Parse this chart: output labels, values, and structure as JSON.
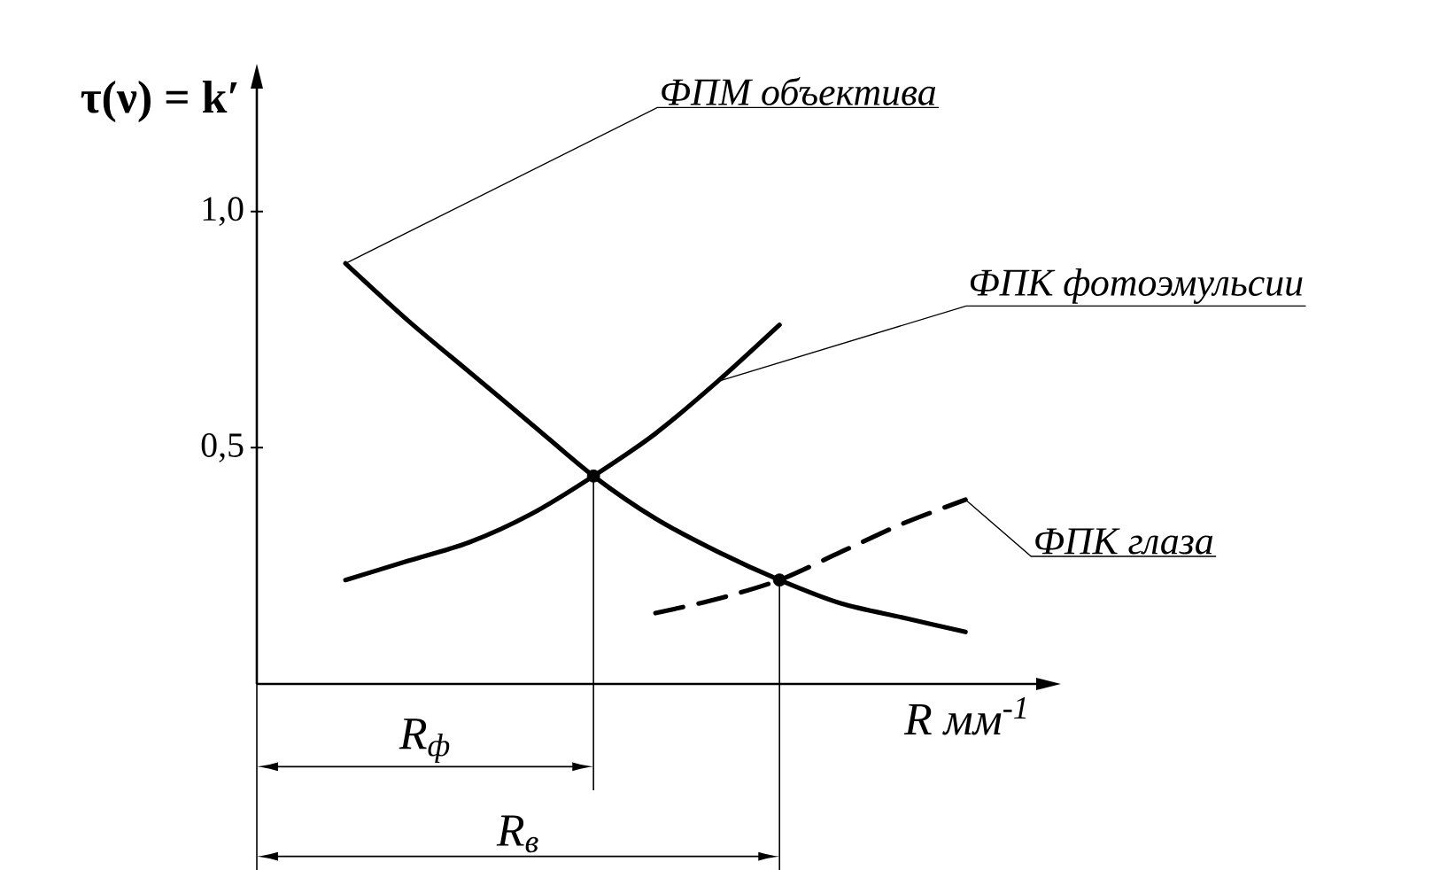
{
  "chart_data": {
    "type": "line",
    "ylabel": "τ(ν) = k′",
    "xlabel": "R мм$^{-1}$",
    "categories": [
      null,
      null,
      null,
      null,
      null,
      null,
      null,
      null,
      null,
      null,
      null
    ],
    "ylim": [
      0,
      1.26
    ],
    "yticks": [
      {
        "value": 0.5,
        "label": "0,5"
      },
      {
        "value": 1.0,
        "label": "1,0"
      }
    ],
    "tick_labels": "y",
    "marker": "none",
    "series": [
      {
        "name": "ФПМ объектива",
        "color": "#000000",
        "values": [
          0.89,
          0.77,
          0.66,
          0.55,
          0.44,
          0.35,
          0.28,
          0.22,
          0.17,
          0.14,
          0.11
        ]
      },
      {
        "name": "ФПК фотоэмульсии",
        "color": "#000000",
        "values": [
          0.22,
          0.26,
          0.3,
          0.36,
          0.44,
          0.53,
          0.64,
          0.76,
          null,
          null,
          null
        ]
      },
      {
        "name": "ФПК глаза",
        "color": "#000000",
        "line_style": "dashed",
        "values": [
          null,
          null,
          null,
          null,
          null,
          0.15,
          0.18,
          0.22,
          0.28,
          0.34,
          0.39
        ]
      },
      {
        "type": "scatter",
        "color": "#000000",
        "marker": "circle",
        "values": [
          null,
          null,
          null,
          null,
          0.44,
          null,
          null,
          0.22,
          null,
          null,
          null
        ]
      }
    ],
    "annotations": [
      "R$_{ф}$",
      "R$_{в}$"
    ]
  }
}
